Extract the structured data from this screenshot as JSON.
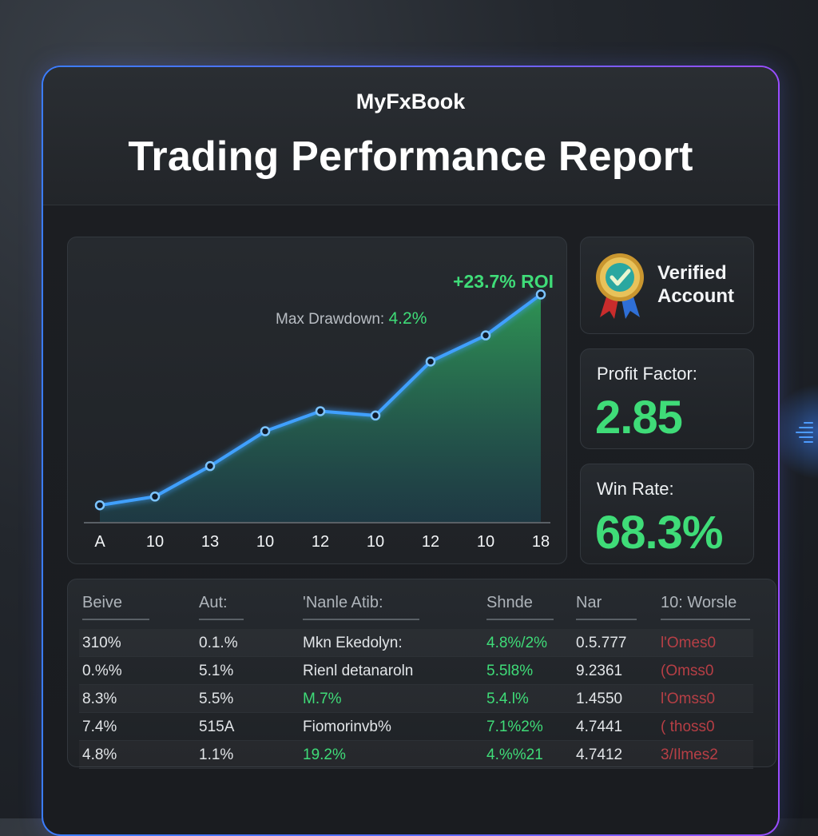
{
  "brand": "MyFxBook",
  "title": "Trading Performance Report",
  "chart_data": {
    "type": "area",
    "x": [
      "A",
      "10",
      "13",
      "10",
      "12",
      "10",
      "12",
      "10",
      "18"
    ],
    "series": [
      {
        "values": [
          2.0,
          3.0,
          6.5,
          10.5,
          12.8,
          12.3,
          18.5,
          21.5,
          26.2
        ]
      }
    ],
    "ylim": [
      0,
      30
    ],
    "grid": false,
    "annotations": [
      {
        "text": "+23.7% ROI",
        "color": "#3fdc78"
      },
      {
        "label": "Max Drawdown:",
        "value": "4.2%"
      }
    ],
    "line_color": "#3fa0ff",
    "fill_color": "#2f8f52"
  },
  "verified": {
    "line1": "Verified",
    "line2": "Account"
  },
  "profit_factor": {
    "label": "Profit Factor:",
    "value": "2.85"
  },
  "win_rate": {
    "label": "Win Rate:",
    "value": "68.3%"
  },
  "table": {
    "headers": [
      "Beive",
      "Aut:",
      "'Nanle Atib:",
      "Shnde",
      "Nar",
      "10: Worsle"
    ],
    "rows": [
      [
        "310%",
        "0.1.%",
        "Mkn Ekedolyn:",
        "4.8%/2%",
        "0.5.777",
        "l'Omes0"
      ],
      [
        "0.%%",
        "5.1%",
        "Rienl detanaroln",
        "5.5l8%",
        "9.2361",
        "(Omss0"
      ],
      [
        "8.3%",
        "5.5%",
        "M.7%",
        "5.4.l%",
        "1.4550",
        "l'Omss0"
      ],
      [
        "7.4%",
        "515A",
        "Fiomorinvb%",
        "7.1%2%",
        "4.7441",
        "( thoss0"
      ],
      [
        "4.8%",
        "1.1%",
        "19.2%",
        "4.%%21",
        "4.7412",
        "3/Ilmes2"
      ]
    ],
    "green_cells": [
      [
        2,
        2
      ],
      [
        4,
        2
      ]
    ]
  },
  "colors": {
    "accent_green": "#3fdc78",
    "line_blue": "#3fa0ff",
    "loss_red": "#d0434a"
  }
}
